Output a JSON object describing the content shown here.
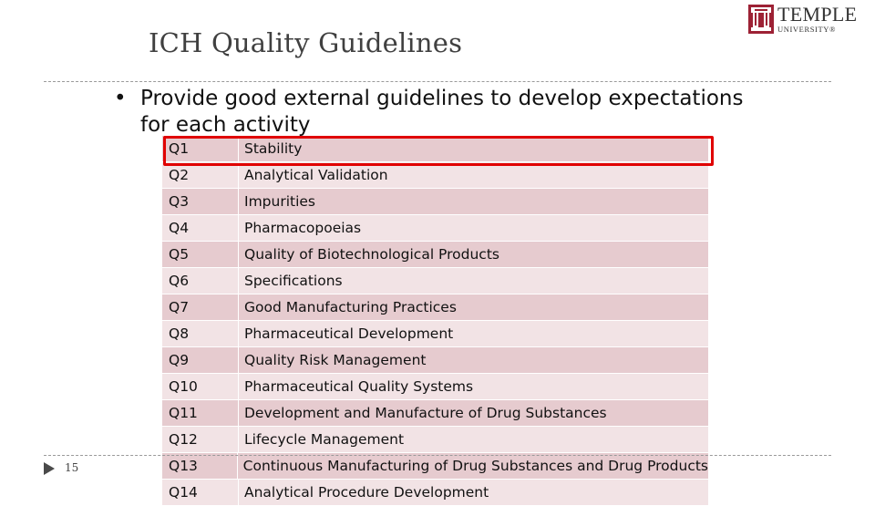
{
  "slide": {
    "title": "ICH Quality Guidelines",
    "bullet": "Provide good external guidelines to develop expectations for each activity",
    "page_number": "15"
  },
  "logo": {
    "name": "TEMPLE",
    "sub": "UNIVERSITY®"
  },
  "colors": {
    "highlight": "#e00000",
    "row_dark": "#e6cbcf",
    "row_light": "#f2e3e5",
    "logo_red": "#9d2235"
  },
  "guidelines": [
    {
      "code": "Q1",
      "name": "Stability"
    },
    {
      "code": "Q2",
      "name": "Analytical Validation"
    },
    {
      "code": "Q3",
      "name": "Impurities"
    },
    {
      "code": "Q4",
      "name": "Pharmacopoeias"
    },
    {
      "code": "Q5",
      "name": "Quality of Biotechnological Products"
    },
    {
      "code": "Q6",
      "name": "Specifications"
    },
    {
      "code": "Q7",
      "name": "Good Manufacturing Practices"
    },
    {
      "code": "Q8",
      "name": "Pharmaceutical Development"
    },
    {
      "code": "Q9",
      "name": "Quality Risk Management"
    },
    {
      "code": "Q10",
      "name": "Pharmaceutical Quality Systems"
    },
    {
      "code": "Q11",
      "name": "Development and Manufacture of Drug Substances"
    },
    {
      "code": "Q12",
      "name": "Lifecycle Management"
    },
    {
      "code": "Q13",
      "name": "Continuous Manufacturing of Drug Substances and Drug Products"
    },
    {
      "code": "Q14",
      "name": "Analytical Procedure Development"
    }
  ]
}
